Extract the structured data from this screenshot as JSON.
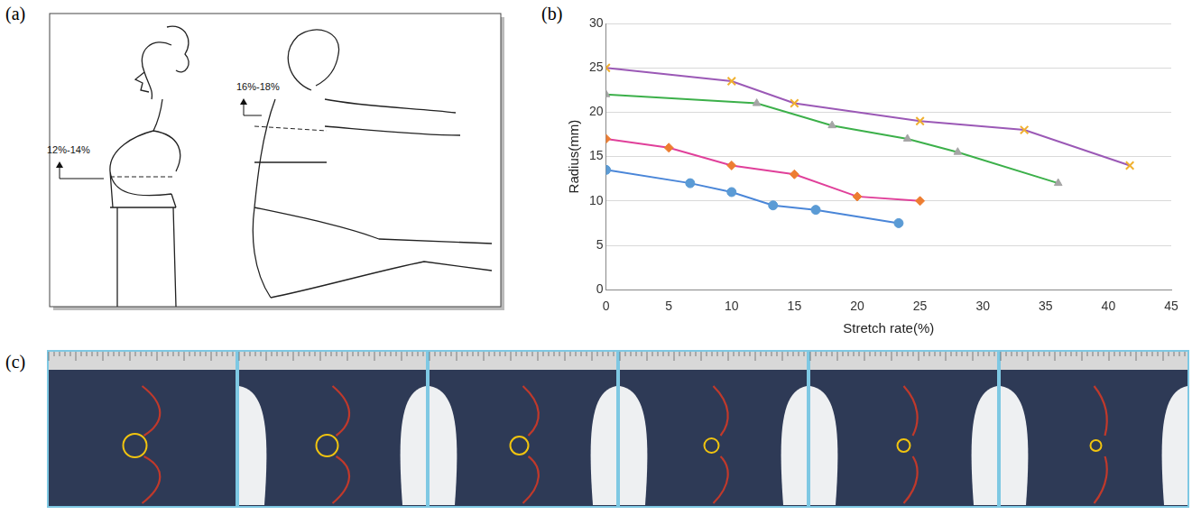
{
  "chart_data": {
    "type": "line",
    "x_title": "Stretch rate(%)",
    "y_title": "Radius(mm)",
    "xlim": [
      0,
      45
    ],
    "xticks": [
      0,
      5,
      10,
      15,
      20,
      25,
      30,
      35,
      40,
      45
    ],
    "ylim": [
      0,
      30
    ],
    "yticks": [
      0,
      5,
      10,
      15,
      20,
      25,
      30
    ],
    "grid": true,
    "series": [
      {
        "color": "#9b59b6",
        "marker": "x",
        "x": [
          0,
          10,
          15,
          25,
          33.3,
          41.7
        ],
        "values": [
          25,
          23.5,
          21,
          19,
          18,
          14
        ]
      },
      {
        "color": "#3cb04a",
        "marker": "triangle",
        "x": [
          0,
          12,
          18,
          24,
          28,
          36
        ],
        "values": [
          22,
          21,
          18.5,
          17,
          15.5,
          12
        ]
      },
      {
        "color": "#e0409a",
        "marker": "diamond",
        "x": [
          0,
          5,
          10,
          15,
          20,
          25
        ],
        "values": [
          17,
          16,
          14,
          13,
          10.5,
          10
        ]
      },
      {
        "color": "#4a86d8",
        "marker": "circle",
        "x": [
          0,
          6.7,
          10,
          13.3,
          16.7,
          23.3
        ],
        "values": [
          13.5,
          12,
          11,
          9.5,
          9,
          7.5
        ]
      }
    ]
  },
  "panel_a": {
    "letter": "(a)",
    "annotations": [
      "12%-14%",
      "16%-18%"
    ]
  },
  "panel_b": {
    "letter": "(b)"
  },
  "panel_c": {
    "letter": "(c)"
  }
}
